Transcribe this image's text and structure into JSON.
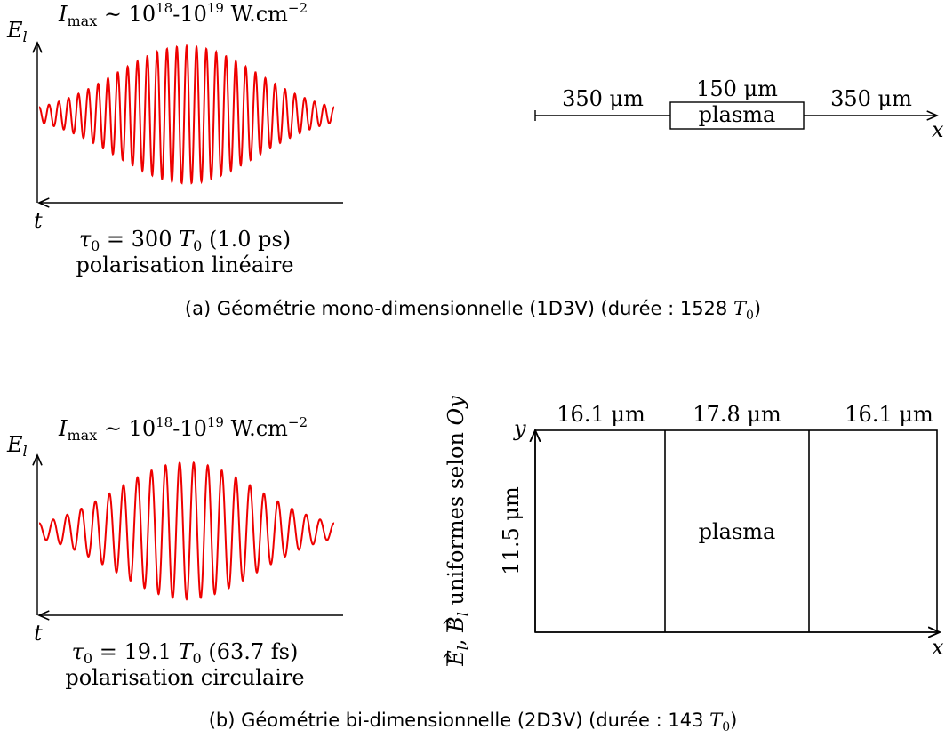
{
  "colors": {
    "wave": "#ee0000",
    "ink": "#000000"
  },
  "panel_a": {
    "intensity": {
      "sym": "I",
      "sub": "max",
      "mid": " ~ 10",
      "exp1": "18",
      "dash": "-10",
      "exp2": "19",
      "unit": " W.cm",
      "exp3": "−2"
    },
    "axis_y": {
      "sym": "E",
      "sub": "l"
    },
    "axis_t": "t",
    "tau": {
      "sym": "τ",
      "sub": "0",
      "eq": " = 300 ",
      "T": "T",
      "Tsub": "0",
      "tail": " (1.0 ps)"
    },
    "polarisation": "polarisation linéaire",
    "dims": {
      "left": "350 μm",
      "plasma_len": "150 μm",
      "plasma": "plasma",
      "right": "350 μm"
    },
    "axis_x": "x",
    "caption": {
      "text": "(a) Géométrie mono-dimensionnelle (1D3V) (durée : 1528 ",
      "T": "T",
      "Tsub": "0",
      "close": ")"
    },
    "pulse": {
      "cycles": 30,
      "envelope_width_fraction": 0.5
    }
  },
  "panel_b": {
    "intensity": {
      "sym": "I",
      "sub": "max",
      "mid": " ~ 10",
      "exp1": "18",
      "dash": "-10",
      "exp2": "19",
      "unit": " W.cm",
      "exp3": "−2"
    },
    "axis_y": {
      "sym": "E",
      "sub": "l"
    },
    "axis_t": "t",
    "tau": {
      "sym": "τ",
      "sub": "0",
      "eq": " = 19.1 ",
      "T": "T",
      "Tsub": "0",
      "tail": " (63.7 fs)"
    },
    "polarisation": "polarisation circulaire",
    "uniform": {
      "E": "E",
      "Esub": "l",
      "sep": ", ",
      "B": "B",
      "Bsub": "l",
      "text": " uniformes selon ",
      "axis": "Oy"
    },
    "dims": {
      "left": "16.1 μm",
      "mid": "17.8 μm",
      "right": "16.1 μm",
      "height": "11.5 μm",
      "plasma": "plasma"
    },
    "axis_x": "x",
    "axis_y2": "y",
    "caption": {
      "text": "(b) Géométrie bi-dimensionnelle (2D3V) (durée : 143 ",
      "T": "T",
      "Tsub": "0",
      "close": ")"
    },
    "pulse": {
      "cycles": 21,
      "envelope_width_fraction": 0.5
    }
  }
}
